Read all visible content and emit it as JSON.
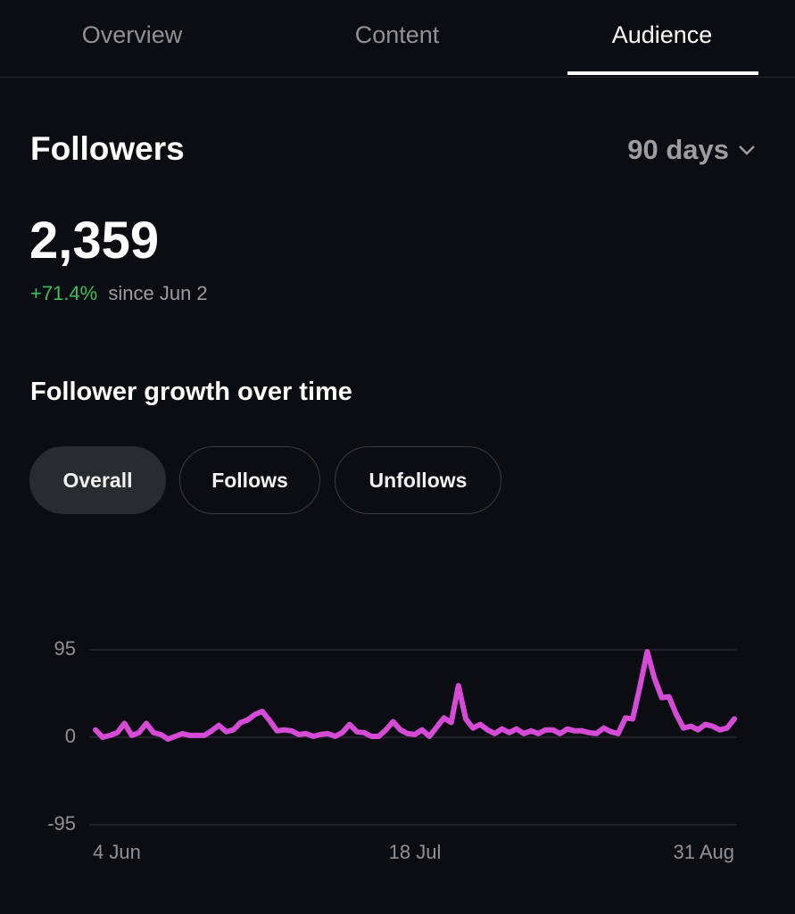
{
  "tabs": [
    "Overview",
    "Content",
    "Audience"
  ],
  "header": {
    "title": "Followers",
    "period": "90 days"
  },
  "stats": {
    "count": "2,359",
    "change": "+71.4%",
    "since": "since Jun 2"
  },
  "section_title": "Follower growth over time",
  "filters": [
    "Overall",
    "Follows",
    "Unfollows"
  ],
  "chart_data": {
    "type": "line",
    "color": "#d54bd6",
    "categories": [
      "4 Jun",
      null,
      null,
      null,
      null,
      null,
      null,
      null,
      null,
      null,
      null,
      null,
      null,
      null,
      null,
      null,
      null,
      null,
      null,
      null,
      null,
      null,
      null,
      null,
      null,
      null,
      null,
      null,
      null,
      null,
      null,
      null,
      null,
      null,
      null,
      null,
      null,
      null,
      null,
      null,
      null,
      null,
      null,
      null,
      "18 Jul",
      null,
      null,
      null,
      null,
      null,
      null,
      null,
      null,
      null,
      null,
      null,
      null,
      null,
      null,
      null,
      null,
      null,
      null,
      null,
      null,
      null,
      null,
      null,
      null,
      null,
      null,
      null,
      null,
      null,
      null,
      null,
      null,
      null,
      null,
      null,
      null,
      null,
      null,
      null,
      null,
      null,
      null,
      null,
      "31 Aug"
    ],
    "values": [
      8,
      0,
      2,
      5,
      15,
      2,
      5,
      15,
      5,
      3,
      -2,
      1,
      4,
      2,
      2,
      2,
      7,
      13,
      6,
      8,
      16,
      19,
      25,
      28,
      18,
      7,
      8,
      7,
      3,
      4,
      1,
      3,
      4,
      1,
      5,
      14,
      6,
      5,
      1,
      1,
      8,
      17,
      8,
      4,
      3,
      8,
      1,
      11,
      21,
      16,
      56,
      20,
      10,
      14,
      8,
      4,
      9,
      5,
      9,
      4,
      7,
      4,
      8,
      8,
      4,
      9,
      7,
      7,
      5,
      4,
      10,
      6,
      4,
      21,
      20,
      55,
      93,
      64,
      43,
      44,
      25,
      10,
      12,
      8,
      14,
      12,
      8,
      10,
      20
    ],
    "ylim": [
      -95,
      95
    ],
    "yticks": [
      -95,
      0,
      95
    ],
    "grid": true
  }
}
